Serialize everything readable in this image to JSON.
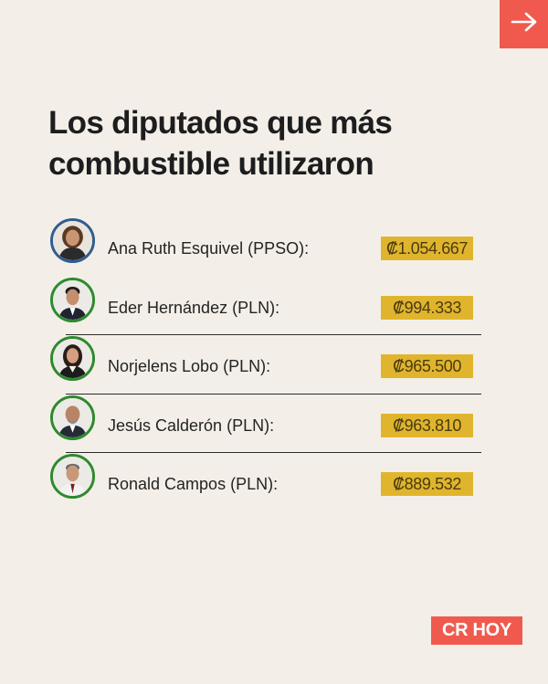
{
  "nav": {
    "next_icon": "arrow-right-icon"
  },
  "title": {
    "line1": "Los diputados que más",
    "line2": "combustible utilizaron"
  },
  "deputies": [
    {
      "name": "Ana Ruth Esquivel (PPSO):",
      "amount": "₡1.054.667",
      "party_color": "#2f5e8f"
    },
    {
      "name": "Eder Hernández (PLN):",
      "amount": "₡994.333",
      "party_color": "#2e8a2e"
    },
    {
      "name": "Norjelens Lobo (PLN):",
      "amount": "₡965.500",
      "party_color": "#2e8a2e"
    },
    {
      "name": "Jesús Calderón (PLN):",
      "amount": "₡963.810",
      "party_color": "#2e8a2e"
    },
    {
      "name": "Ronald Campos (PLN):",
      "amount": "₡889.532",
      "party_color": "#2e8a2e"
    }
  ],
  "brand": {
    "logo_text": "CR HOY",
    "accent": "#f05a4e",
    "highlight": "#e0b52d"
  }
}
